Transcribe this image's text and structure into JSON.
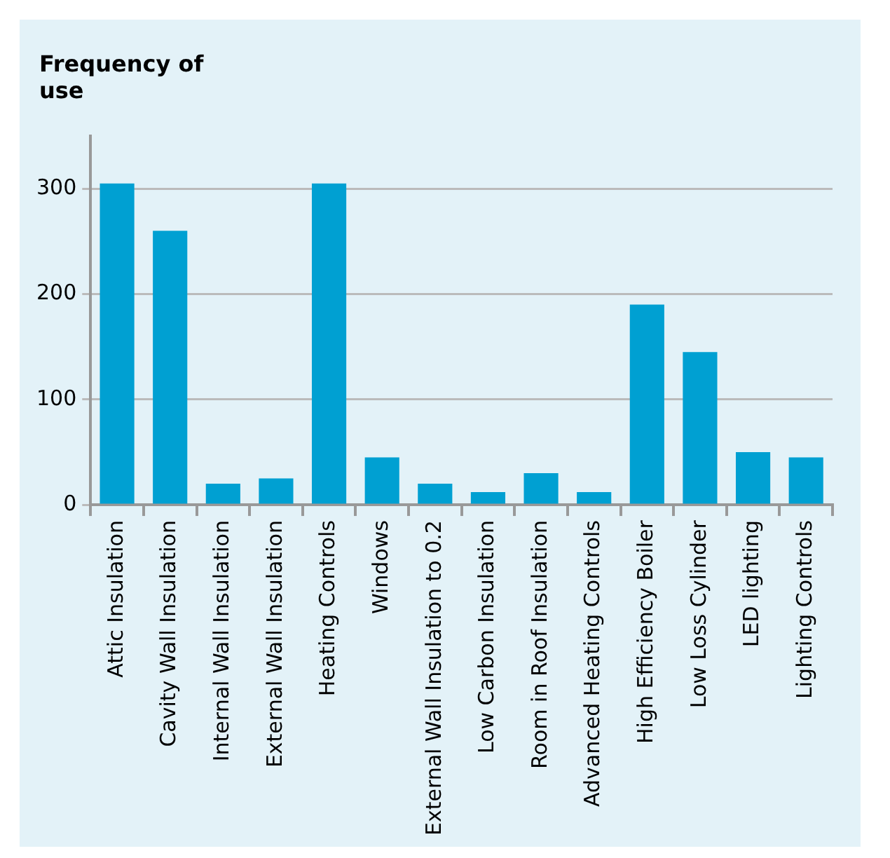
{
  "chart_data": {
    "type": "bar",
    "ylabel": "Frequency of use",
    "categories": [
      "Attic Insulation",
      "Cavity Wall Insulation",
      "Internal Wall Insulation",
      "External Wall Insulation",
      "Heating Controls",
      "Windows",
      "External Wall Insulation to 0.2",
      "Low Carbon Insulation",
      "Room in Roof Insulation",
      "Advanced Heating Controls",
      "High Efficiency Boiler",
      "Low Loss Cylinder",
      "LED lighting",
      "Lighting Controls"
    ],
    "values": [
      305,
      260,
      20,
      25,
      305,
      45,
      20,
      12,
      30,
      12,
      190,
      145,
      50,
      45
    ],
    "color": "#00a0d2",
    "ylim": [
      0,
      350
    ],
    "yticks": [
      0,
      100,
      200,
      300
    ],
    "grid": "y",
    "legend": false
  }
}
